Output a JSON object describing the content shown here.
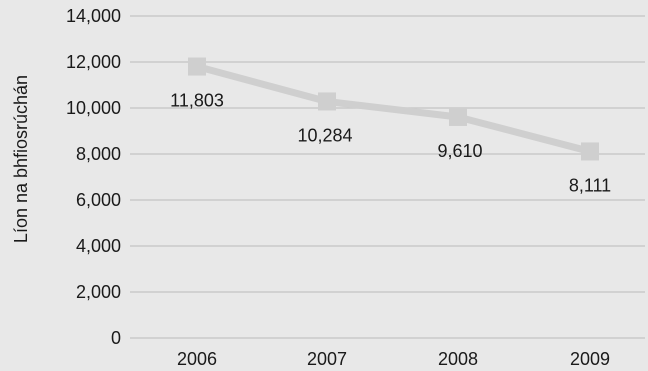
{
  "chart_data": {
    "type": "line",
    "title": "",
    "xlabel": "",
    "ylabel": "Líon na bhfiosrúchán",
    "categories": [
      "2006",
      "2007",
      "2008",
      "2009"
    ],
    "series": [
      {
        "values": [
          11803,
          10284,
          9610,
          8111
        ]
      }
    ],
    "data_labels": [
      "11,803",
      "10,284",
      "9,610",
      "8,111"
    ],
    "yticks": [
      0,
      2000,
      4000,
      6000,
      8000,
      10000,
      12000,
      14000
    ],
    "ytick_labels": [
      "0",
      "2,000",
      "4,000",
      "6,000",
      "8,000",
      "10,000",
      "12,000",
      "14,000"
    ],
    "ylim": [
      0,
      14000
    ],
    "grid": true,
    "legend": "none",
    "colors": {
      "background": "#e8e8e8",
      "line": "#cfcfcf",
      "marker": "#cfcfcf",
      "grid": "#c9c9c9",
      "text": "#1a1a1a"
    }
  }
}
